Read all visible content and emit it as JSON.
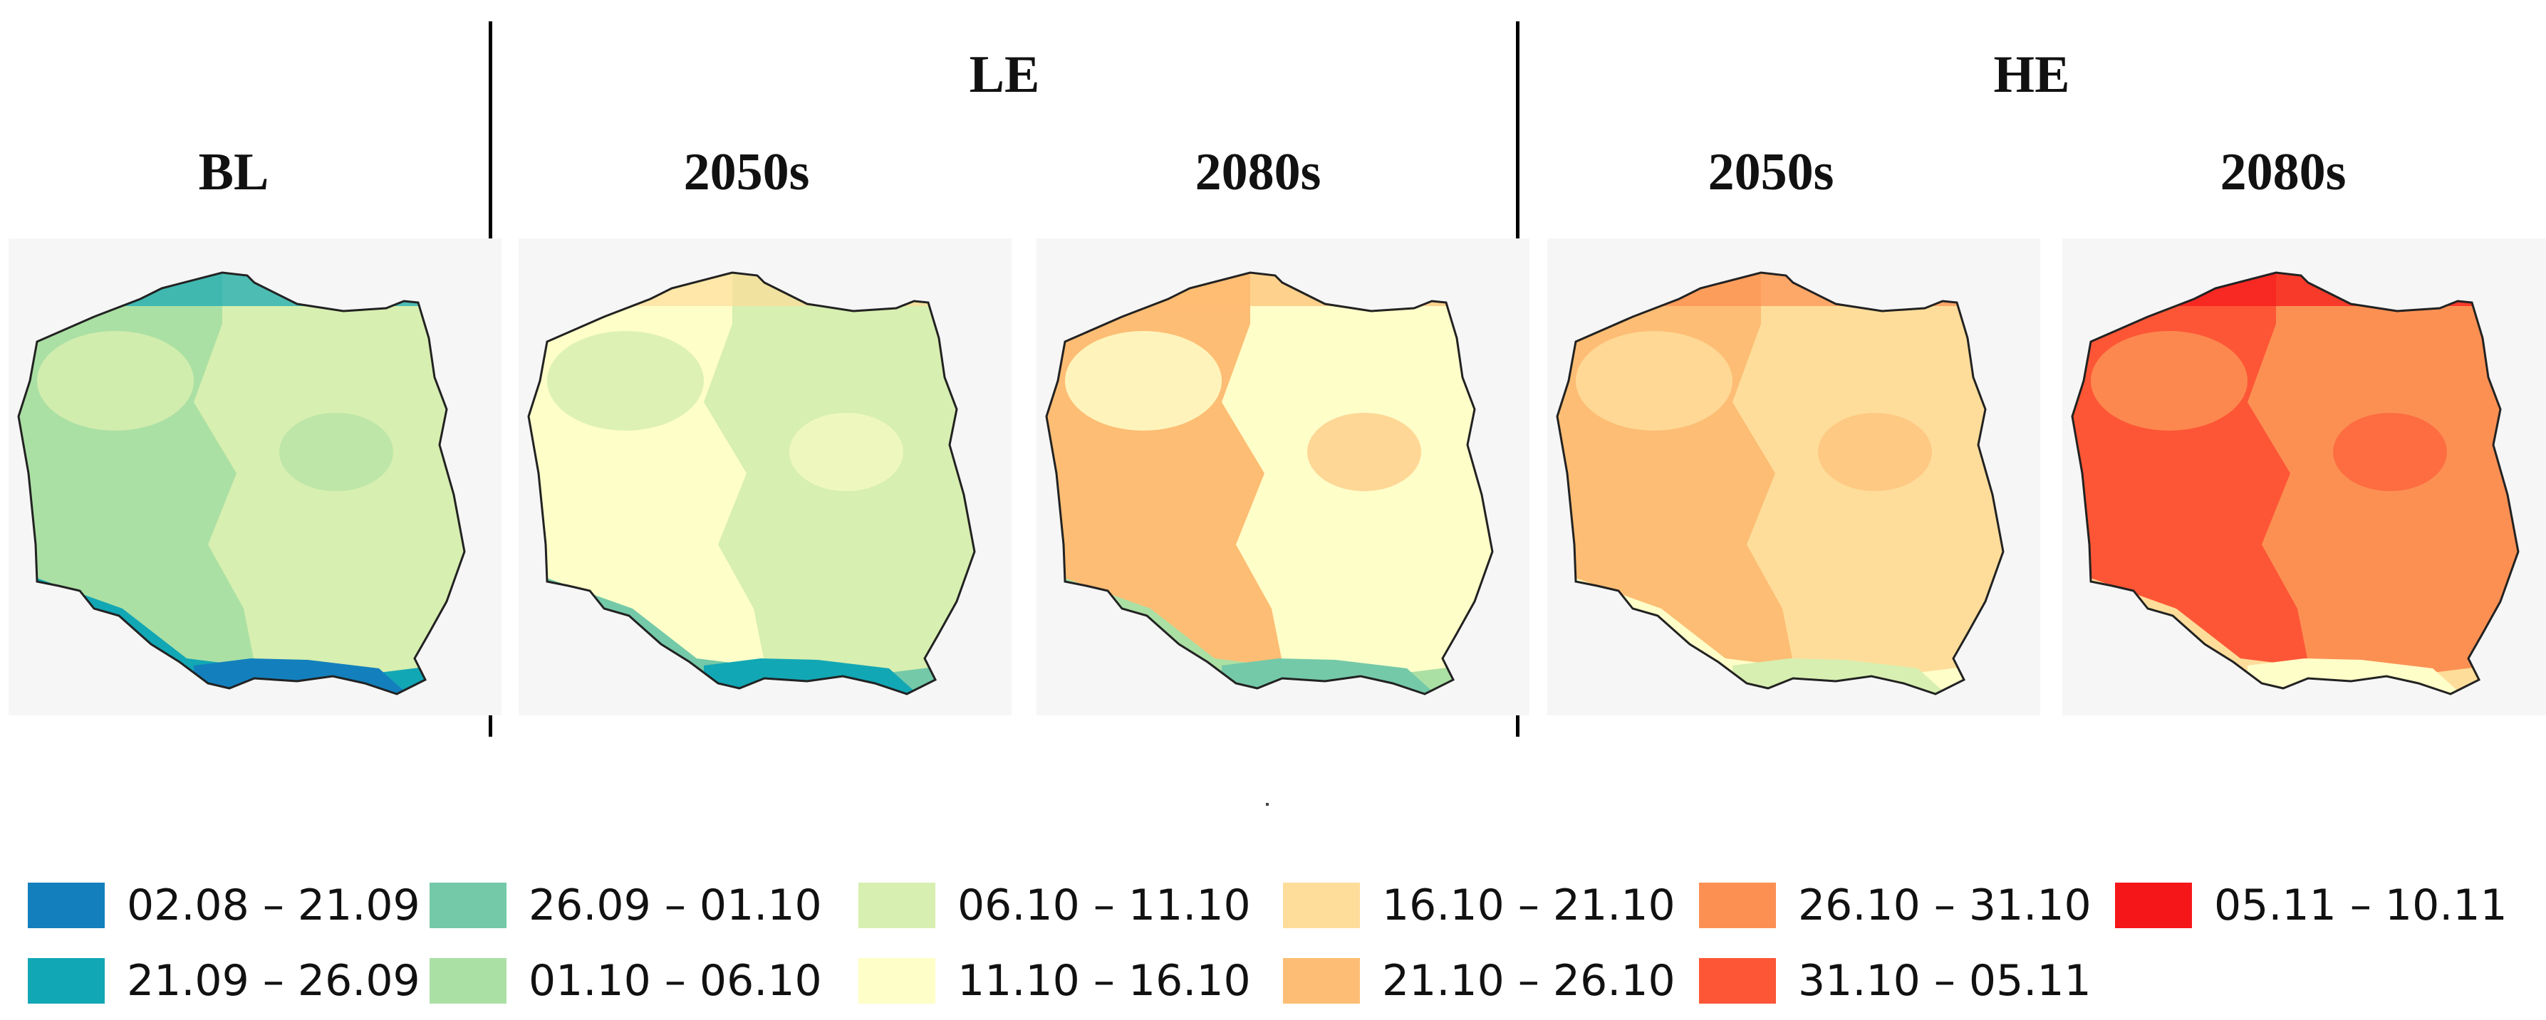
{
  "group_labels": {
    "le": "LE",
    "he": "HE"
  },
  "panels": [
    {
      "id": "bl",
      "label": "BL",
      "class_index": [
        3,
        4
      ],
      "coast_class": 1,
      "south_class": 0
    },
    {
      "id": "le-2050",
      "label": "2050s",
      "class_index": [
        5,
        4
      ],
      "coast_class": 6,
      "south_class": 1
    },
    {
      "id": "le-2080",
      "label": "2080s",
      "class_index": [
        7,
        5
      ],
      "coast_class": 7,
      "south_class": 2
    },
    {
      "id": "he-2050",
      "label": "2050s",
      "class_index": [
        7,
        6
      ],
      "coast_class": 8,
      "south_class": 4
    },
    {
      "id": "he-2080",
      "label": "2080s",
      "class_index": [
        9,
        8
      ],
      "coast_class": 10,
      "south_class": 5
    }
  ],
  "legend": [
    {
      "label": "02.08 – 21.09",
      "color": "#1380bd"
    },
    {
      "label": "21.09 – 26.09",
      "color": "#12a7b5"
    },
    {
      "label": "26.09 – 01.10",
      "color": "#74c9a9"
    },
    {
      "label": "01.10 – 06.10",
      "color": "#abe0a4"
    },
    {
      "label": "06.10 – 11.10",
      "color": "#d7efb0"
    },
    {
      "label": "11.10 – 16.10",
      "color": "#fefec8"
    },
    {
      "label": "16.10 – 21.10",
      "color": "#fedd9a"
    },
    {
      "label": "21.10 – 26.10",
      "color": "#fdbd74"
    },
    {
      "label": "26.10 – 31.10",
      "color": "#fc9053"
    },
    {
      "label": "31.10 – 05.11",
      "color": "#fd5636"
    },
    {
      "label": "05.11 – 10.11",
      "color": "#f5161a"
    }
  ]
}
